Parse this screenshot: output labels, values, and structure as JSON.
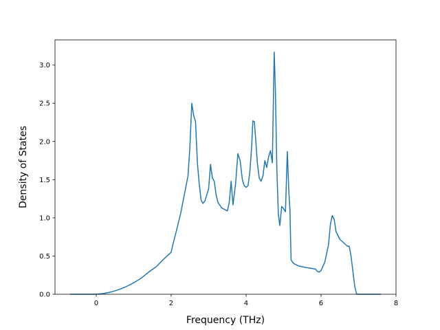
{
  "chart_data": {
    "type": "line",
    "title": "",
    "xlabel": "Frequency (THz)",
    "ylabel": "Density of States",
    "xlim": [
      -1.1,
      8.0
    ],
    "ylim": [
      0.0,
      3.33
    ],
    "xticks": [
      0,
      2,
      4,
      6,
      8
    ],
    "yticks": [
      0.0,
      0.5,
      1.0,
      1.5,
      2.0,
      2.5,
      3.0
    ],
    "xtick_labels": [
      "0",
      "2",
      "4",
      "6",
      "8"
    ],
    "ytick_labels": [
      "0.0",
      "0.5",
      "1.0",
      "1.5",
      "2.0",
      "2.5",
      "3.0"
    ],
    "grid": false,
    "series": [
      {
        "color": "#1f77b4",
        "x": [
          -0.7,
          -0.4,
          -0.1,
          0.0,
          0.2,
          0.4,
          0.6,
          0.8,
          1.0,
          1.2,
          1.4,
          1.6,
          1.8,
          2.0,
          2.05,
          2.15,
          2.25,
          2.35,
          2.45,
          2.5,
          2.55,
          2.6,
          2.65,
          2.7,
          2.75,
          2.8,
          2.85,
          2.9,
          2.95,
          3.0,
          3.05,
          3.1,
          3.15,
          3.2,
          3.25,
          3.35,
          3.5,
          3.55,
          3.6,
          3.65,
          3.72,
          3.78,
          3.84,
          3.9,
          3.95,
          4.0,
          4.05,
          4.1,
          4.15,
          4.18,
          4.22,
          4.26,
          4.3,
          4.35,
          4.4,
          4.45,
          4.5,
          4.55,
          4.6,
          4.65,
          4.7,
          4.75,
          4.78,
          4.82,
          4.86,
          4.9,
          4.95,
          5.0,
          5.05,
          5.1,
          5.14,
          5.17,
          5.2,
          5.24,
          5.28,
          5.4,
          5.6,
          5.85,
          5.9,
          5.95,
          6.0,
          6.1,
          6.2,
          6.25,
          6.3,
          6.35,
          6.4,
          6.5,
          6.7,
          6.75,
          6.8,
          6.85,
          6.9,
          6.95,
          7.2,
          7.6
        ],
        "y": [
          0.0,
          0.0,
          0.0,
          0.0,
          0.01,
          0.03,
          0.06,
          0.1,
          0.15,
          0.21,
          0.29,
          0.36,
          0.46,
          0.55,
          0.66,
          0.85,
          1.05,
          1.3,
          1.55,
          1.93,
          2.5,
          2.34,
          2.26,
          1.72,
          1.44,
          1.23,
          1.19,
          1.22,
          1.3,
          1.38,
          1.7,
          1.52,
          1.48,
          1.3,
          1.2,
          1.13,
          1.09,
          1.2,
          1.48,
          1.17,
          1.45,
          1.84,
          1.75,
          1.5,
          1.42,
          1.4,
          1.42,
          1.6,
          1.95,
          2.27,
          2.26,
          2.0,
          1.72,
          1.52,
          1.48,
          1.55,
          1.75,
          1.66,
          1.8,
          1.88,
          1.72,
          3.17,
          2.7,
          1.65,
          1.05,
          0.9,
          1.15,
          1.12,
          1.08,
          1.87,
          1.35,
          1.1,
          0.45,
          0.42,
          0.4,
          0.37,
          0.35,
          0.33,
          0.3,
          0.29,
          0.31,
          0.42,
          0.65,
          0.92,
          1.03,
          0.98,
          0.82,
          0.72,
          0.63,
          0.63,
          0.5,
          0.3,
          0.1,
          0.0,
          0.0,
          0.0
        ]
      }
    ]
  }
}
